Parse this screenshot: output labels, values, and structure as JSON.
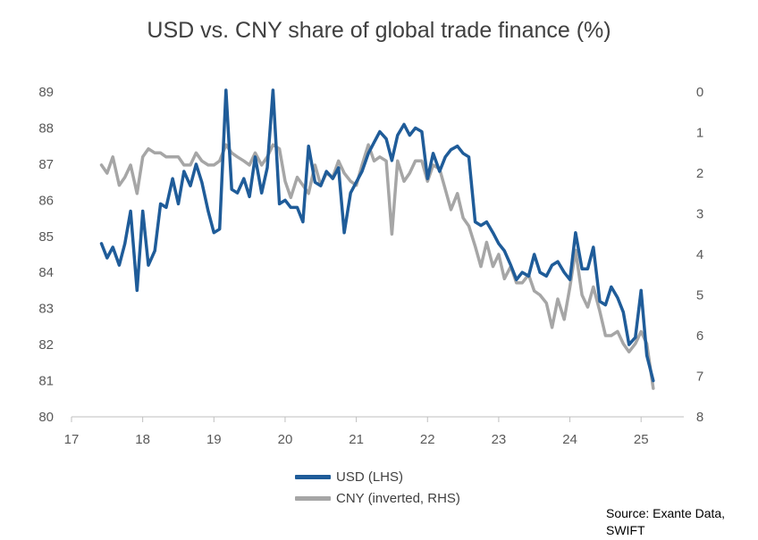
{
  "chart_data": {
    "type": "line",
    "title": "USD vs. CNY share of global trade finance (%)",
    "xlim": [
      17,
      25.6
    ],
    "x_ticks": [
      "17",
      "18",
      "19",
      "20",
      "21",
      "22",
      "23",
      "24",
      "25"
    ],
    "y_left": {
      "ylim": [
        80,
        89
      ],
      "ticks": [
        "80",
        "81",
        "82",
        "83",
        "84",
        "85",
        "86",
        "87",
        "88",
        "89"
      ]
    },
    "y_right": {
      "ylim": [
        0,
        8
      ],
      "inverted": true,
      "ticks": [
        "0",
        "1",
        "2",
        "3",
        "4",
        "5",
        "6",
        "7",
        "8"
      ]
    },
    "legend_position": "bottom",
    "series": [
      {
        "name": "USD (LHS)",
        "axis": "left",
        "color": "#1f5c99",
        "x": [
          17.42,
          17.5,
          17.58,
          17.67,
          17.75,
          17.83,
          17.92,
          18.0,
          18.08,
          18.17,
          18.25,
          18.33,
          18.42,
          18.5,
          18.58,
          18.67,
          18.75,
          18.83,
          18.92,
          19.0,
          19.08,
          19.17,
          19.25,
          19.33,
          19.42,
          19.5,
          19.58,
          19.67,
          19.75,
          19.83,
          19.92,
          20.0,
          20.08,
          20.17,
          20.25,
          20.33,
          20.42,
          20.5,
          20.58,
          20.67,
          20.75,
          20.83,
          20.92,
          21.0,
          21.08,
          21.17,
          21.25,
          21.33,
          21.42,
          21.5,
          21.58,
          21.67,
          21.75,
          21.83,
          21.92,
          22.0,
          22.08,
          22.17,
          22.25,
          22.33,
          22.42,
          22.5,
          22.58,
          22.67,
          22.75,
          22.83,
          22.92,
          23.0,
          23.08,
          23.17,
          23.25,
          23.33,
          23.42,
          23.5,
          23.58,
          23.67,
          23.75,
          23.83,
          23.92,
          24.0,
          24.08,
          24.17,
          24.25,
          24.33,
          24.42,
          24.5,
          24.58,
          24.67,
          24.75,
          24.83,
          24.92,
          25.0,
          25.08,
          25.17
        ],
        "values": [
          84.8,
          84.4,
          84.7,
          84.2,
          84.8,
          85.7,
          83.5,
          85.7,
          84.2,
          84.6,
          85.9,
          85.8,
          86.6,
          85.9,
          86.8,
          86.4,
          87.0,
          86.5,
          85.7,
          85.1,
          85.2,
          89.1,
          86.3,
          86.2,
          86.6,
          86.1,
          87.2,
          86.2,
          86.9,
          89.1,
          85.9,
          86.0,
          85.8,
          85.8,
          85.4,
          87.5,
          86.5,
          86.4,
          86.8,
          86.6,
          86.9,
          85.1,
          86.2,
          86.5,
          86.8,
          87.3,
          87.6,
          87.9,
          87.7,
          87.1,
          87.8,
          88.1,
          87.8,
          88.0,
          87.9,
          86.6,
          87.3,
          86.8,
          87.2,
          87.4,
          87.5,
          87.3,
          87.2,
          85.4,
          85.3,
          85.4,
          85.1,
          84.8,
          84.6,
          84.2,
          83.8,
          84.0,
          83.9,
          84.5,
          84.0,
          83.9,
          84.2,
          84.3,
          84.0,
          83.8,
          85.1,
          84.1,
          84.1,
          84.7,
          83.2,
          83.1,
          83.6,
          83.3,
          82.9,
          82.0,
          82.2,
          83.5,
          81.7,
          81.0
        ]
      },
      {
        "name": "CNY (inverted, RHS)",
        "axis": "right",
        "color": "#a6a6a6",
        "x": [
          17.42,
          17.5,
          17.58,
          17.67,
          17.75,
          17.83,
          17.92,
          18.0,
          18.08,
          18.17,
          18.25,
          18.33,
          18.42,
          18.5,
          18.58,
          18.67,
          18.75,
          18.83,
          18.92,
          19.0,
          19.08,
          19.17,
          19.25,
          19.33,
          19.42,
          19.5,
          19.58,
          19.67,
          19.75,
          19.83,
          19.92,
          20.0,
          20.08,
          20.17,
          20.25,
          20.33,
          20.42,
          20.5,
          20.58,
          20.67,
          20.75,
          20.83,
          20.92,
          21.0,
          21.08,
          21.17,
          21.25,
          21.33,
          21.42,
          21.5,
          21.58,
          21.67,
          21.75,
          21.83,
          21.92,
          22.0,
          22.08,
          22.17,
          22.25,
          22.33,
          22.42,
          22.5,
          22.58,
          22.67,
          22.75,
          22.83,
          22.92,
          23.0,
          23.08,
          23.17,
          23.25,
          23.33,
          23.42,
          23.5,
          23.58,
          23.67,
          23.75,
          23.83,
          23.92,
          24.0,
          24.08,
          24.17,
          24.25,
          24.33,
          24.42,
          24.5,
          24.58,
          24.67,
          24.75,
          24.83,
          24.92,
          25.0,
          25.08,
          25.17
        ],
        "values": [
          1.8,
          2.0,
          1.6,
          2.3,
          2.1,
          1.8,
          2.5,
          1.6,
          1.4,
          1.5,
          1.5,
          1.6,
          1.6,
          1.6,
          1.8,
          1.8,
          1.5,
          1.7,
          1.8,
          1.8,
          1.7,
          1.3,
          1.5,
          1.6,
          1.7,
          1.8,
          1.5,
          1.8,
          1.6,
          1.3,
          1.4,
          2.2,
          2.6,
          2.1,
          2.3,
          2.5,
          1.8,
          2.3,
          2.0,
          2.1,
          1.7,
          2.0,
          2.2,
          2.3,
          1.8,
          1.3,
          1.7,
          1.6,
          1.7,
          3.5,
          1.7,
          2.2,
          2.0,
          1.7,
          1.7,
          2.2,
          1.8,
          1.9,
          2.4,
          2.9,
          2.5,
          3.1,
          3.3,
          3.8,
          4.3,
          3.7,
          4.3,
          4.0,
          4.6,
          4.3,
          4.7,
          4.7,
          4.5,
          4.9,
          5.0,
          5.2,
          5.8,
          5.1,
          5.6,
          4.8,
          3.9,
          5.0,
          5.3,
          4.8,
          5.4,
          6.0,
          6.0,
          5.9,
          6.2,
          6.4,
          6.2,
          5.9,
          6.2,
          7.3
        ]
      }
    ]
  },
  "source_note_lines": [
    "Source: Exante Data,",
    "SWIFT"
  ]
}
